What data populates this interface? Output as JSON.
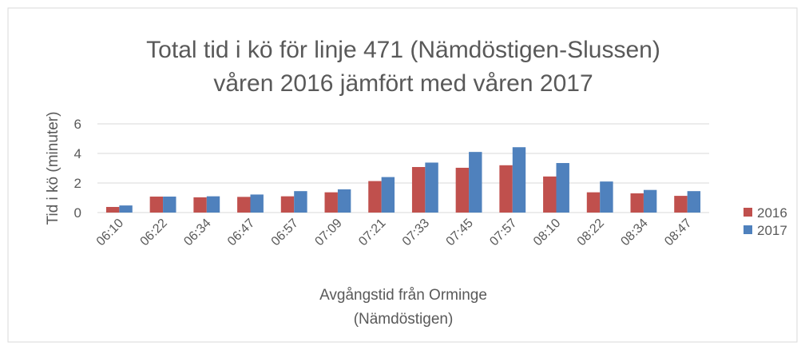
{
  "chart_data": {
    "type": "bar",
    "title": [
      "Total tid i kö för linje 471 (Nämdöstigen-Slussen)",
      "våren 2016 jämfört med våren 2017"
    ],
    "x_label": [
      "Avgångstid från Orminge",
      "(Nämdöstigen)"
    ],
    "y_label": "Tid i kö (minuter)",
    "categories": [
      "06:10",
      "06:22",
      "06:34",
      "06:47",
      "06:57",
      "07:09",
      "07:21",
      "07:33",
      "07:45",
      "07:57",
      "08:10",
      "08:22",
      "08:34",
      "08:47"
    ],
    "series": [
      {
        "name": "2016",
        "color": "#c0504d",
        "values": [
          0.38,
          1.08,
          1.03,
          1.06,
          1.1,
          1.37,
          2.13,
          3.08,
          3.03,
          3.2,
          2.44,
          1.37,
          1.3,
          1.13
        ]
      },
      {
        "name": "2017",
        "color": "#4f81bd",
        "values": [
          0.48,
          1.08,
          1.1,
          1.22,
          1.45,
          1.57,
          2.4,
          3.38,
          4.1,
          4.42,
          3.35,
          2.1,
          1.53,
          1.45
        ]
      }
    ],
    "ylim": [
      0,
      6
    ],
    "yticks": [
      0,
      2,
      4,
      6
    ],
    "grid": true,
    "legend": "right"
  }
}
